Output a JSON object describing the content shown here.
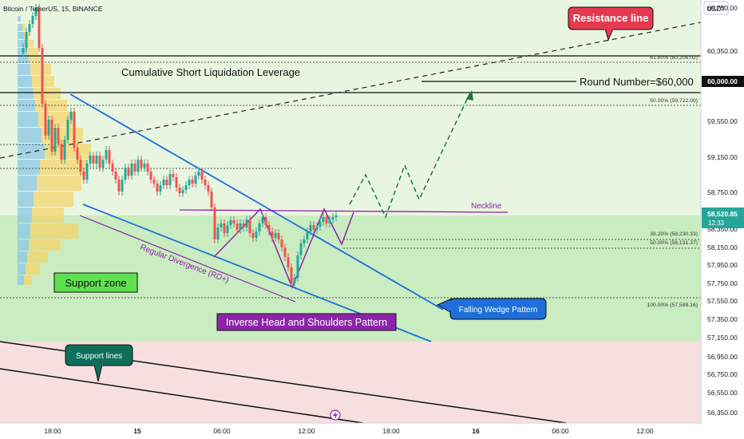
{
  "header": {
    "symbol_title": "Bitcoin / TetherUS, 15, BINANCE",
    "currency": "USDT"
  },
  "price_axis": {
    "ticks": [
      "60,750.00",
      "60,350.00",
      "59,550.00",
      "59,150.00",
      "58,750.00",
      "58,350.00",
      "58,150.00",
      "57,950.00",
      "57,750.00",
      "57,550.00",
      "57,350.00",
      "57,150.00",
      "56,950.00",
      "56,750.00",
      "56,550.00",
      "56,350.00"
    ],
    "round_number_badge": "60,000.00",
    "current_price": "58,520.85",
    "countdown": "12:33"
  },
  "time_axis": {
    "labels": [
      "18:00",
      "15",
      "06:00",
      "12:00",
      "18:00",
      "16",
      "06:00",
      "12:00"
    ]
  },
  "fib_levels": [
    {
      "label": "61.80% (60,206.02)",
      "price": 60206.02
    },
    {
      "label": "50.00% (59,722.00)",
      "price": 59722.0
    },
    {
      "label": "38.20% (58,230.33)",
      "price": 58230.33
    },
    {
      "label": "50.00% (58,131.37)",
      "price": 58131.37
    },
    {
      "label": "100.00% (57,588.16)",
      "price": 57588.16
    }
  ],
  "annotations": {
    "resistance_line": "Resistance line",
    "liquidation": "Cumulative Short Liquidation Leverage",
    "round_number": "Round Number=$60,000",
    "neckline": "Neckline",
    "support_zone": "Support zone",
    "regular_divergence": "Regular Divergence (RD+)",
    "falling_wedge": "Falling Wedge Pattern",
    "inverse_hs": "Inverse Head and Shoulders Pattern",
    "support_lines": "Support lines"
  },
  "colors": {
    "upper_zone_bg": "#e8f5e0",
    "support_zone_bg": "#c9ecc0",
    "lower_zone_bg": "#f7dfe0",
    "wedge_blue": "#1e6fd9",
    "pattern_purple": "#8e24aa",
    "projection_green": "#1b7a3c",
    "candle_up": "#26a69a",
    "candle_down": "#ef5350",
    "resistance_badge": "#e53950",
    "support_badge": "#0d6e5a"
  },
  "icons": {
    "chart_logo": "lightning-icon"
  }
}
